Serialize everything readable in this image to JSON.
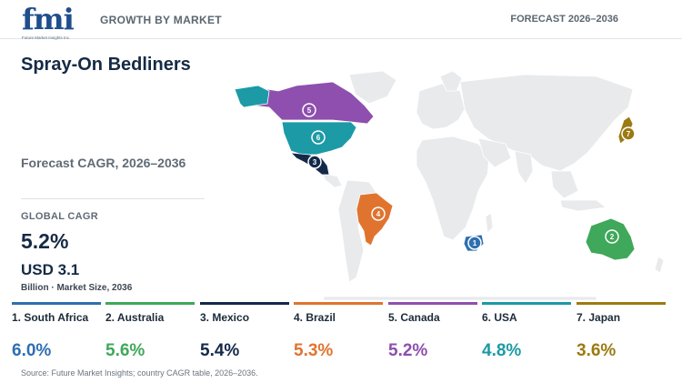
{
  "header": {
    "logo_text": "fmi",
    "logo_sub": "Future Market Insights Inc.",
    "section": "GROWTH BY MARKET",
    "forecast": "FORECAST 2026–2036"
  },
  "title": "Spray-On Bedliners",
  "cagr_label": "Forecast CAGR, 2026–2036",
  "global": {
    "label": "GLOBAL CAGR",
    "value": "5.2%",
    "market_size": "USD 3.1",
    "market_note": "Billion · Market Size, 2036"
  },
  "map_markers": [
    "1",
    "2",
    "3",
    "4",
    "5",
    "6",
    "7"
  ],
  "countries": [
    {
      "label": "1. South Africa",
      "value": "6.0%",
      "color": "#2e6fb0"
    },
    {
      "label": "2. Australia",
      "value": "5.6%",
      "color": "#3fa85a"
    },
    {
      "label": "3. Mexico",
      "value": "5.4%",
      "color": "#14284a"
    },
    {
      "label": "4. Brazil",
      "value": "5.3%",
      "color": "#e0742f"
    },
    {
      "label": "5. Canada",
      "value": "5.2%",
      "color": "#8e4fae"
    },
    {
      "label": "6. USA",
      "value": "4.8%",
      "color": "#1c9aa6"
    },
    {
      "label": "7. Japan",
      "value": "3.6%",
      "color": "#9c7a12"
    }
  ],
  "source": "Source: Future Market Insights; country CAGR table, 2026–2036."
}
